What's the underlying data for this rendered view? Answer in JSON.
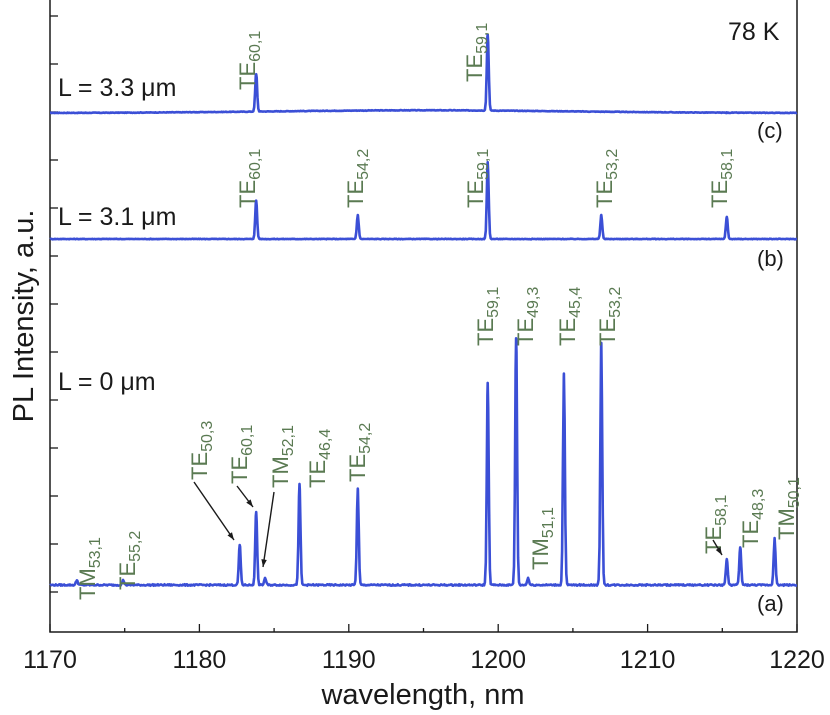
{
  "chart_data": {
    "type": "line",
    "title": "",
    "temperature": "78 K",
    "xlabel": "wavelength, nm",
    "ylabel": "PL Intensity, a.u.",
    "xlim": [
      1170,
      1220
    ],
    "x_ticks": [
      "1170",
      "1180",
      "1190",
      "1200",
      "1210",
      "1220"
    ],
    "y_tick_count": 13,
    "grid": false,
    "series": [
      {
        "panel": "(c)",
        "L_label": "L = 3.3 μm",
        "baseline": 0.05,
        "hump": 0.03,
        "peaks": [
          {
            "x": 1183.8,
            "y": 0.48,
            "mode": "TE",
            "indices": "60,1"
          },
          {
            "x": 1199.3,
            "y": 0.92,
            "mode": "TE",
            "indices": "59,1"
          },
          {
            "x": 1215.3,
            "y": 0.05,
            "mode": "",
            "indices": ""
          }
        ]
      },
      {
        "panel": "(b)",
        "L_label": "L = 3.1 μm",
        "baseline": 0.05,
        "hump": 0.0,
        "peaks": [
          {
            "x": 1183.8,
            "y": 0.45,
            "mode": "TE",
            "indices": "60,1"
          },
          {
            "x": 1190.6,
            "y": 0.3,
            "mode": "TE",
            "indices": "54,2"
          },
          {
            "x": 1199.3,
            "y": 0.85,
            "mode": "TE",
            "indices": "59,1"
          },
          {
            "x": 1206.9,
            "y": 0.3,
            "mode": "TE",
            "indices": "53,2"
          },
          {
            "x": 1215.3,
            "y": 0.28,
            "mode": "TE",
            "indices": "58,1"
          }
        ]
      },
      {
        "panel": "(a)",
        "L_label": "L = 0 μm",
        "baseline": 0.0,
        "hump": 0.0,
        "peaks": [
          {
            "x": 1171.8,
            "y": 0.02,
            "mode": "TM",
            "indices": "53,1"
          },
          {
            "x": 1174.9,
            "y": 0.02,
            "mode": "TE",
            "indices": "55,2"
          },
          {
            "x": 1182.7,
            "y": 0.17,
            "mode": "TE",
            "indices": "50,3"
          },
          {
            "x": 1183.8,
            "y": 0.31,
            "mode": "TE",
            "indices": "60,1"
          },
          {
            "x": 1184.4,
            "y": 0.03,
            "mode": "TM",
            "indices": "52,1"
          },
          {
            "x": 1186.7,
            "y": 0.43,
            "mode": "TE",
            "indices": "46,4"
          },
          {
            "x": 1190.6,
            "y": 0.41,
            "mode": "TE",
            "indices": "54,2"
          },
          {
            "x": 1199.3,
            "y": 0.86,
            "mode": "TE",
            "indices": "59,1"
          },
          {
            "x": 1201.2,
            "y": 1.05,
            "mode": "TE",
            "indices": "49,3"
          },
          {
            "x": 1202.0,
            "y": 0.03,
            "mode": "TM",
            "indices": "51,1"
          },
          {
            "x": 1204.4,
            "y": 0.9,
            "mode": "TE",
            "indices": "45,4"
          },
          {
            "x": 1206.9,
            "y": 1.03,
            "mode": "TE",
            "indices": "53,2"
          },
          {
            "x": 1215.3,
            "y": 0.11,
            "mode": "TE",
            "indices": "58,1"
          },
          {
            "x": 1216.2,
            "y": 0.16,
            "mode": "TE",
            "indices": "48,3"
          },
          {
            "x": 1218.5,
            "y": 0.2,
            "mode": "TM",
            "indices": "50,1"
          }
        ]
      }
    ]
  }
}
